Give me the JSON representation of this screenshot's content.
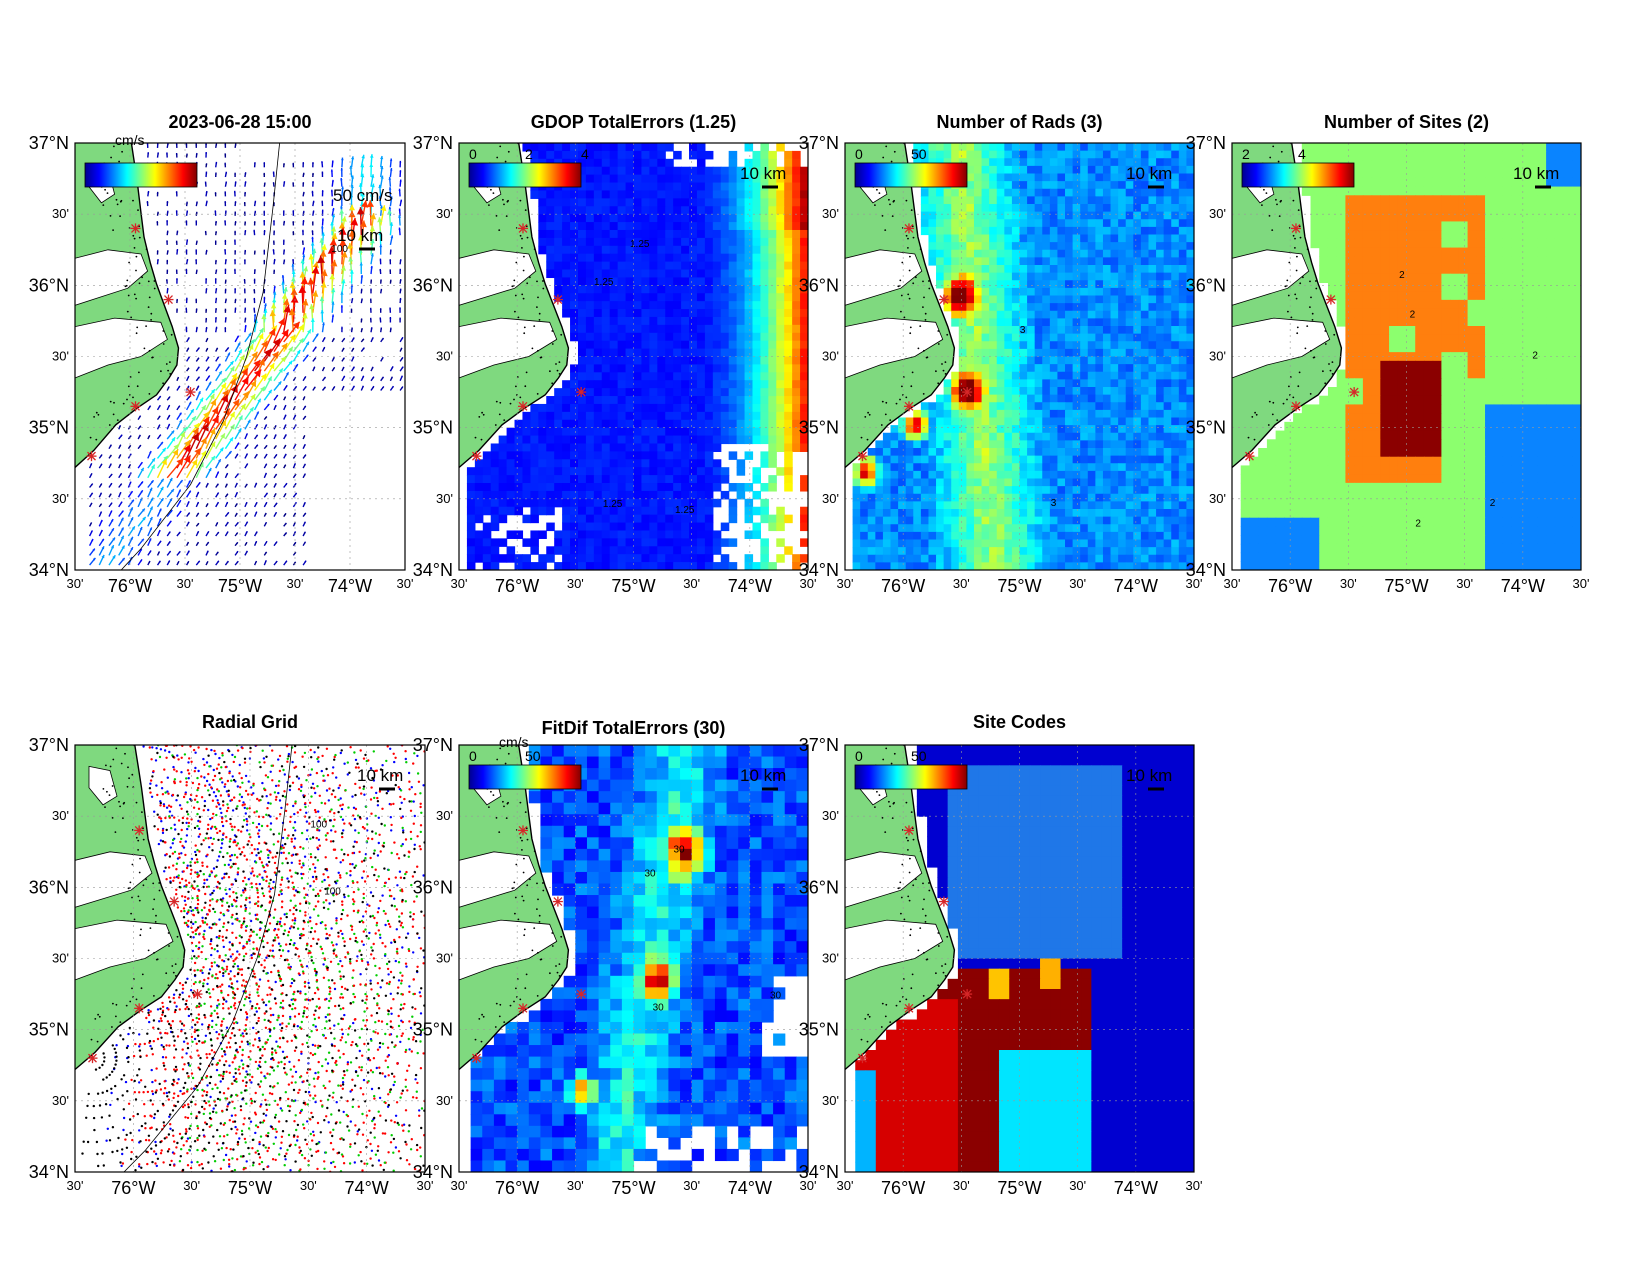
{
  "figure": {
    "timestamp": "2023-06-28 15:00",
    "colorbar_unit": "cm/s",
    "colors": {
      "land": "#7fd97f",
      "coast": "#000000",
      "site_marker": "#d62728",
      "frame": "#000000"
    }
  },
  "chart_data": [
    {
      "type": "heatmap",
      "id": "currents",
      "title": "",
      "subtitle": "2023-06-28 15:00",
      "kind": "quiver",
      "colorbar": {
        "unit": "cm/s",
        "ticks": []
      },
      "scale_labels": [
        "50 cm/s",
        "10 km"
      ],
      "contour_labels": [
        "100"
      ],
      "ylim": [
        34,
        37
      ],
      "xlim": [
        -76.5,
        -73.5
      ]
    },
    {
      "type": "heatmap",
      "id": "gdop",
      "title": "GDOP TotalErrors (1.25)",
      "kind": "gdop",
      "colorbar": {
        "unit": "",
        "ticks": [
          "0",
          "2",
          "4"
        ]
      },
      "scale_labels": [
        "10 km"
      ],
      "contour_labels": [
        "1.25",
        "1.25",
        "1.25",
        "1.25"
      ],
      "ylim": [
        34,
        37
      ],
      "xlim": [
        -76.5,
        -73.5
      ]
    },
    {
      "type": "heatmap",
      "id": "rads",
      "title": "Number of Rads (3)",
      "kind": "rads",
      "colorbar": {
        "unit": "",
        "ticks": [
          "0",
          "50"
        ]
      },
      "scale_labels": [
        "10 km"
      ],
      "contour_labels": [
        "3",
        "3"
      ],
      "ylim": [
        34,
        37
      ],
      "xlim": [
        -76.5,
        -73.5
      ]
    },
    {
      "type": "heatmap",
      "id": "sites",
      "title": "Number of Sites (2)",
      "kind": "sites",
      "colorbar": {
        "unit": "",
        "ticks": [
          "2",
          "4"
        ]
      },
      "scale_labels": [
        "10 km"
      ],
      "contour_labels": [
        "2",
        "2",
        "2",
        "2",
        "2"
      ],
      "ylim": [
        34,
        37
      ],
      "xlim": [
        -76.5,
        -73.5
      ]
    },
    {
      "type": "scatter",
      "id": "radial",
      "title": "Radial Grid",
      "kind": "radial",
      "colorbar": null,
      "scale_labels": [
        "10 km"
      ],
      "contour_labels": [
        "100",
        "100"
      ],
      "ylim": [
        34,
        37
      ],
      "xlim": [
        -76.5,
        -73.5
      ]
    },
    {
      "type": "heatmap",
      "id": "fitdif",
      "title": "FitDif TotalErrors (30)",
      "kind": "fitdif",
      "colorbar": {
        "unit": "cm/s",
        "ticks": [
          "0",
          "50"
        ]
      },
      "scale_labels": [
        "10 km"
      ],
      "contour_labels": [
        "30",
        "30",
        "30",
        "30"
      ],
      "ylim": [
        34,
        37
      ],
      "xlim": [
        -76.5,
        -73.5
      ]
    },
    {
      "type": "heatmap",
      "id": "codes",
      "title": "Site Codes",
      "kind": "codes",
      "colorbar": {
        "unit": "",
        "ticks": [
          "0",
          "50"
        ]
      },
      "scale_labels": [
        "10 km"
      ],
      "contour_labels": [],
      "ylim": [
        34,
        37
      ],
      "xlim": [
        -76.5,
        -73.5
      ]
    }
  ],
  "axes": {
    "lat_ticks": [
      "37°N",
      "30'",
      "36°N",
      "30'",
      "35°N",
      "30'",
      "34°N"
    ],
    "lon_ticks": [
      "30'",
      "76°W",
      "30'",
      "75°W",
      "30'",
      "74°W",
      "30'"
    ]
  },
  "sites": [
    {
      "lon": -75.95,
      "lat": 36.4
    },
    {
      "lon": -75.65,
      "lat": 35.9
    },
    {
      "lon": -75.45,
      "lat": 35.25
    },
    {
      "lon": -75.95,
      "lat": 35.15
    },
    {
      "lon": -76.35,
      "lat": 34.8
    }
  ]
}
